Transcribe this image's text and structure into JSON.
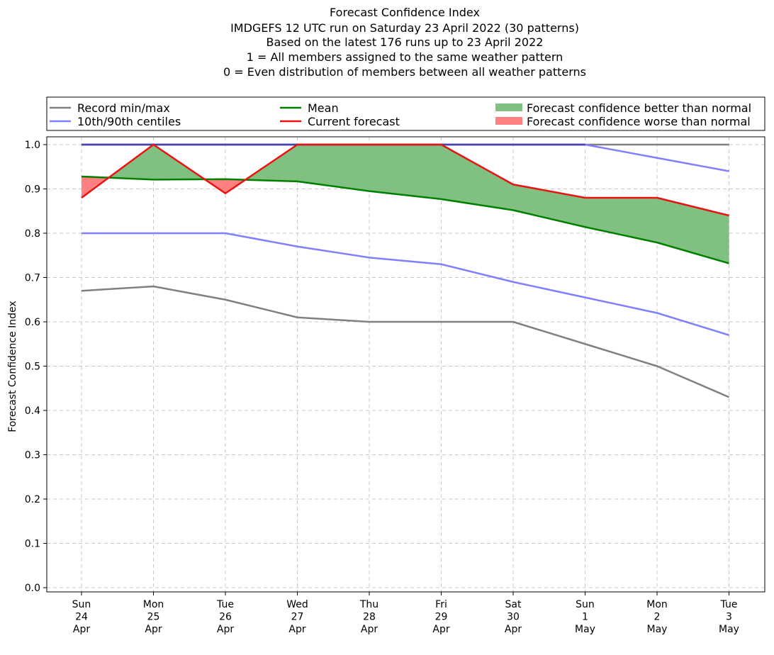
{
  "chart_data": {
    "type": "line",
    "title_lines": [
      "Forecast Confidence Index",
      "IMDGEFS 12 UTC run on Saturday 23 April 2022 (30 patterns)",
      "Based on the latest 176 runs up to 23 April 2022",
      "1 = All members assigned to the same weather pattern",
      "0 = Even distribution of members between all weather patterns"
    ],
    "ylabel": "Forecast Confidence Index",
    "ylim": [
      0.0,
      1.0
    ],
    "yticks": [
      "0.0",
      "0.1",
      "0.2",
      "0.3",
      "0.4",
      "0.5",
      "0.6",
      "0.7",
      "0.8",
      "0.9",
      "1.0"
    ],
    "categories": [
      [
        "Sun",
        "24",
        "Apr"
      ],
      [
        "Mon",
        "25",
        "Apr"
      ],
      [
        "Tue",
        "26",
        "Apr"
      ],
      [
        "Wed",
        "27",
        "Apr"
      ],
      [
        "Thu",
        "28",
        "Apr"
      ],
      [
        "Fri",
        "29",
        "Apr"
      ],
      [
        "Sat",
        "30",
        "Apr"
      ],
      [
        "Sun",
        "1",
        "May"
      ],
      [
        "Mon",
        "2",
        "May"
      ],
      [
        "Tue",
        "3",
        "May"
      ]
    ],
    "grid": true,
    "legend_placement": "top, above plot, 3 columns",
    "legend": [
      {
        "label": "Record min/max",
        "kind": "line",
        "color": "#808080"
      },
      {
        "label": "10th/90th centiles",
        "kind": "line",
        "color": "#8080ff"
      },
      {
        "label": "Mean",
        "kind": "line",
        "color": "#008000"
      },
      {
        "label": "Current forecast",
        "kind": "line",
        "color": "#ee1111"
      },
      {
        "label": "Forecast confidence better than normal",
        "kind": "patch",
        "color": "#80c080"
      },
      {
        "label": "Forecast confidence worse than normal",
        "kind": "patch",
        "color": "#ff8080"
      }
    ],
    "series": [
      {
        "name": "Record min/max",
        "role": "record_min",
        "color": "#808080",
        "values": [
          0.67,
          0.68,
          0.65,
          0.61,
          0.6,
          0.6,
          0.6,
          0.55,
          0.5,
          0.43
        ]
      },
      {
        "name": "Record min/max",
        "role": "record_max",
        "color": "#808080",
        "values": [
          1.0,
          1.0,
          1.0,
          1.0,
          1.0,
          1.0,
          1.0,
          1.0,
          1.0,
          1.0
        ]
      },
      {
        "name": "10th/90th centiles",
        "role": "p10",
        "color": "#8080ff",
        "values": [
          0.8,
          0.8,
          0.8,
          0.77,
          0.745,
          0.73,
          0.69,
          0.655,
          0.62,
          0.57
        ]
      },
      {
        "name": "10th/90th centiles",
        "role": "p90",
        "color": "#8080ff",
        "values": [
          1.0,
          1.0,
          1.0,
          1.0,
          1.0,
          1.0,
          1.0,
          1.0,
          0.97,
          0.94
        ]
      },
      {
        "name": "Mean",
        "role": "mean",
        "color": "#008000",
        "values": [
          0.928,
          0.921,
          0.922,
          0.917,
          0.895,
          0.877,
          0.852,
          0.814,
          0.779,
          0.732
        ]
      },
      {
        "name": "Current forecast",
        "role": "current",
        "color": "#ee1111",
        "values": [
          0.88,
          1.0,
          0.89,
          1.0,
          1.0,
          1.0,
          0.91,
          0.88,
          0.88,
          0.84
        ]
      }
    ]
  }
}
